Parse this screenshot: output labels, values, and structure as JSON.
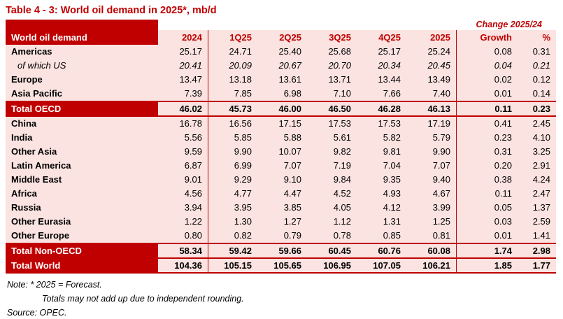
{
  "chart_data": {
    "type": "table",
    "title": "Table 4 - 3: World oil demand in 2025*, mb/d",
    "label_header": "World oil demand",
    "change_group_header": "Change 2025/24",
    "columns": [
      "2024",
      "1Q25",
      "2Q25",
      "3Q25",
      "4Q25",
      "2025",
      "Growth",
      "%"
    ],
    "rows": [
      {
        "label": "Americas",
        "style": "normal",
        "values": [
          "25.17",
          "24.71",
          "25.40",
          "25.68",
          "25.17",
          "25.24",
          "0.08",
          "0.31"
        ]
      },
      {
        "label": "of which US",
        "style": "italic",
        "values": [
          "20.41",
          "20.09",
          "20.67",
          "20.70",
          "20.34",
          "20.45",
          "0.04",
          "0.21"
        ]
      },
      {
        "label": "Europe",
        "style": "normal",
        "values": [
          "13.47",
          "13.18",
          "13.61",
          "13.71",
          "13.44",
          "13.49",
          "0.02",
          "0.12"
        ]
      },
      {
        "label": "Asia Pacific",
        "style": "normal",
        "values": [
          "7.39",
          "7.85",
          "6.98",
          "7.10",
          "7.66",
          "7.40",
          "0.01",
          "0.14"
        ]
      },
      {
        "label": "Total OECD",
        "style": "total",
        "values": [
          "46.02",
          "45.73",
          "46.00",
          "46.50",
          "46.28",
          "46.13",
          "0.11",
          "0.23"
        ]
      },
      {
        "label": "China",
        "style": "normal",
        "values": [
          "16.78",
          "16.56",
          "17.15",
          "17.53",
          "17.53",
          "17.19",
          "0.41",
          "2.45"
        ]
      },
      {
        "label": "India",
        "style": "normal",
        "values": [
          "5.56",
          "5.85",
          "5.88",
          "5.61",
          "5.82",
          "5.79",
          "0.23",
          "4.10"
        ]
      },
      {
        "label": "Other Asia",
        "style": "normal",
        "values": [
          "9.59",
          "9.90",
          "10.07",
          "9.82",
          "9.81",
          "9.90",
          "0.31",
          "3.25"
        ]
      },
      {
        "label": "Latin America",
        "style": "normal",
        "values": [
          "6.87",
          "6.99",
          "7.07",
          "7.19",
          "7.04",
          "7.07",
          "0.20",
          "2.91"
        ]
      },
      {
        "label": "Middle East",
        "style": "normal",
        "values": [
          "9.01",
          "9.29",
          "9.10",
          "9.84",
          "9.35",
          "9.40",
          "0.38",
          "4.24"
        ]
      },
      {
        "label": "Africa",
        "style": "normal",
        "values": [
          "4.56",
          "4.77",
          "4.47",
          "4.52",
          "4.93",
          "4.67",
          "0.11",
          "2.47"
        ]
      },
      {
        "label": "Russia",
        "style": "normal",
        "values": [
          "3.94",
          "3.95",
          "3.85",
          "4.05",
          "4.12",
          "3.99",
          "0.05",
          "1.37"
        ]
      },
      {
        "label": "Other Eurasia",
        "style": "normal",
        "values": [
          "1.22",
          "1.30",
          "1.27",
          "1.12",
          "1.31",
          "1.25",
          "0.03",
          "2.59"
        ]
      },
      {
        "label": "Other Europe",
        "style": "normal",
        "values": [
          "0.80",
          "0.82",
          "0.79",
          "0.78",
          "0.85",
          "0.81",
          "0.01",
          "1.41"
        ]
      },
      {
        "label": "Total Non-OECD",
        "style": "total",
        "values": [
          "58.34",
          "59.42",
          "59.66",
          "60.45",
          "60.76",
          "60.08",
          "1.74",
          "2.98"
        ]
      },
      {
        "label": "Total World",
        "style": "total",
        "values": [
          "104.36",
          "105.15",
          "105.65",
          "106.95",
          "107.05",
          "106.21",
          "1.85",
          "1.77"
        ]
      }
    ]
  },
  "notes": {
    "forecast": "Note: * 2025 = Forecast.",
    "rounding": "Totals may not add up due to independent rounding.",
    "source": "Source: OPEC."
  },
  "colors": {
    "dark_red": "#C00000",
    "pink": "#FAE3E0"
  }
}
